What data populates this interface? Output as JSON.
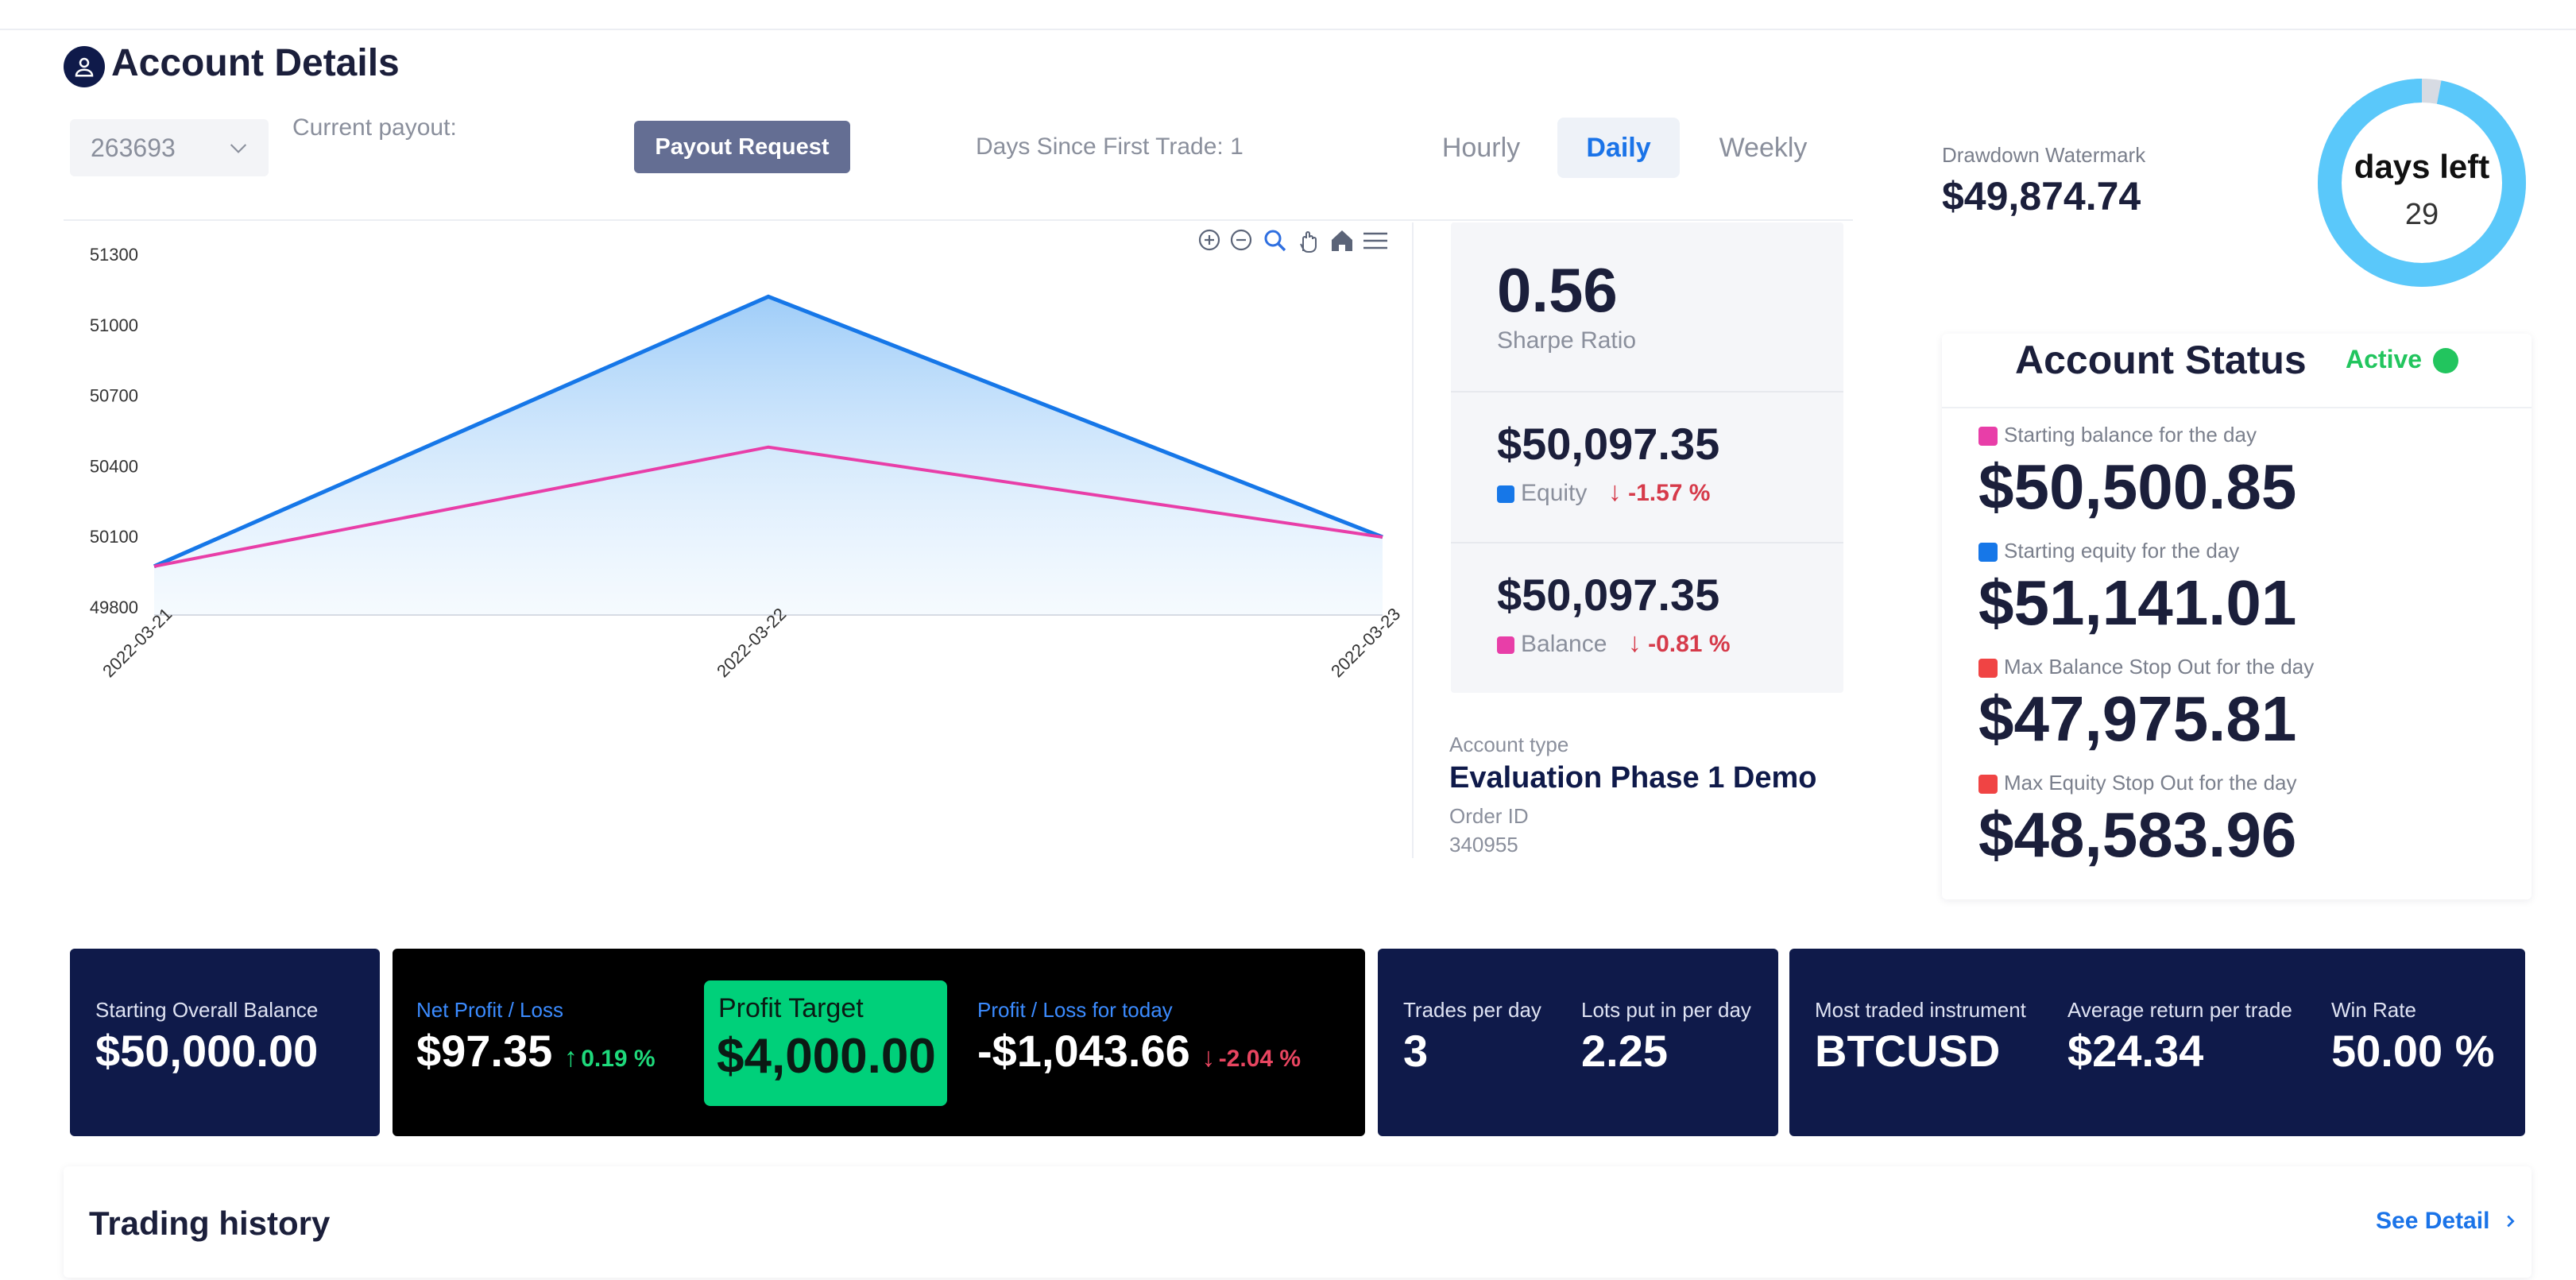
{
  "header": {
    "title": "Account Details",
    "account_select": "263693",
    "current_payout_label": "Current payout:",
    "payout_button": "Payout Request",
    "days_since_first_trade": "Days Since First Trade: 1",
    "tabs": [
      {
        "label": "Hourly",
        "active": false
      },
      {
        "label": "Daily",
        "active": true
      },
      {
        "label": "Weekly",
        "active": false
      }
    ]
  },
  "chart_data": {
    "type": "area",
    "x": [
      "2022-03-21",
      "2022-03-22",
      "2022-03-23"
    ],
    "series": [
      {
        "name": "Equity",
        "color": "#1677e8",
        "values": [
          49973,
          51120,
          50097.35
        ]
      },
      {
        "name": "Balance",
        "color": "#e83ea8",
        "values": [
          49973,
          50480,
          50097.35
        ]
      }
    ],
    "yticks": [
      49800,
      50100,
      50400,
      50700,
      51000,
      51300
    ],
    "ylim": [
      49800,
      51300
    ],
    "grid": false,
    "toolbar": [
      "zoom-in-icon",
      "zoom-out-icon",
      "magnifier-icon",
      "pan-hand-icon",
      "home-icon",
      "menu-icon"
    ]
  },
  "stats": {
    "sharpe_value": "0.56",
    "sharpe_label": "Sharpe Ratio",
    "equity_value": "$50,097.35",
    "equity_label": "Equity",
    "equity_change": "-1.57 %",
    "balance_value": "$50,097.35",
    "balance_label": "Balance",
    "balance_change": "-0.81 %",
    "equity_color": "#1677e8",
    "balance_color": "#e83ea8"
  },
  "account_info": {
    "type_label": "Account type",
    "type_value": "Evaluation Phase 1 Demo",
    "order_label": "Order ID",
    "order_value": "340955"
  },
  "drawdown": {
    "label": "Drawdown Watermark",
    "value": "$49,874.74"
  },
  "days_left": {
    "label": "days left",
    "value": "29",
    "fraction_remaining": 0.97,
    "ring_color": "#5ac8fa"
  },
  "status": {
    "title": "Account Status",
    "state": "Active",
    "lines": [
      {
        "label": "Starting balance for the day",
        "value": "$50,500.85",
        "color": "#e83ea8"
      },
      {
        "label": "Starting equity for the day",
        "value": "$51,141.01",
        "color": "#1677e8"
      },
      {
        "label": "Max Balance Stop Out for the day",
        "value": "$47,975.81",
        "color": "#f04444"
      },
      {
        "label": "Max Equity Stop Out for the day",
        "value": "$48,583.96",
        "color": "#f04444"
      }
    ]
  },
  "tiles": {
    "starting_overall_label": "Starting Overall Balance",
    "starting_overall_value": "$50,000.00",
    "net_pl_label": "Net Profit / Loss",
    "net_pl_value": "$97.35",
    "net_pl_change": "0.19 %",
    "profit_target_label": "Profit Target",
    "profit_target_value": "$4,000.00",
    "pl_today_label": "Profit / Loss for today",
    "pl_today_value": "-$1,043.66",
    "pl_today_change": "-2.04 %",
    "trades_label": "Trades per day",
    "trades_value": "3",
    "lots_label": "Lots put in per day",
    "lots_value": "2.25",
    "instrument_label": "Most traded instrument",
    "instrument_value": "BTCUSD",
    "avg_return_label": "Average return per trade",
    "avg_return_value": "$24.34",
    "win_rate_label": "Win Rate",
    "win_rate_value": "50.00 %"
  },
  "history": {
    "title": "Trading history",
    "see_detail": "See Detail"
  }
}
